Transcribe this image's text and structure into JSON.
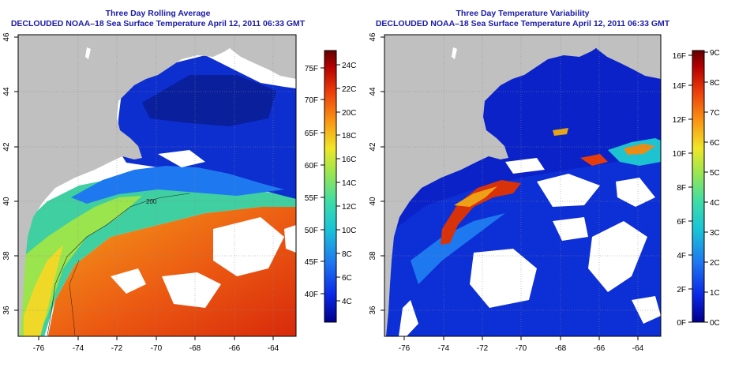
{
  "left_panel": {
    "title": "Three Day Rolling Average",
    "subtitle": "DECLOUDED NOAA–18 Sea Surface Temperature April 12, 2011 06:33 GMT",
    "x_ticks": [
      "-76",
      "-74",
      "-72",
      "-70",
      "-68",
      "-66",
      "-64"
    ],
    "y_ticks": [
      "36",
      "38",
      "40",
      "42",
      "44",
      "46"
    ],
    "colorbar_f_labels": [
      "40F",
      "45F",
      "50F",
      "55F",
      "60F",
      "65F",
      "70F",
      "75F"
    ],
    "colorbar_c_labels": [
      "4C",
      "6C",
      "8C",
      "10C",
      "12C",
      "14C",
      "16C",
      "18C",
      "20C",
      "22C",
      "24C"
    ],
    "contour_label": "200"
  },
  "right_panel": {
    "title": "Three Day Temperature Variability",
    "subtitle": "DECLOUDED NOAA–18 Sea Surface Temperature April 12, 2011 06:33 GMT",
    "x_ticks": [
      "-76",
      "-74",
      "-72",
      "-70",
      "-68",
      "-66",
      "-64"
    ],
    "y_ticks": [
      "36",
      "38",
      "40",
      "42",
      "44",
      "46"
    ],
    "colorbar_f_labels": [
      "0F",
      "2F",
      "4F",
      "6F",
      "8F",
      "10F",
      "12F",
      "14F",
      "16F"
    ],
    "colorbar_c_labels": [
      "0C",
      "1C",
      "2C",
      "3C",
      "4C",
      "5C",
      "6C",
      "7C",
      "8C",
      "9C"
    ]
  },
  "colors": {
    "land": "#c0c0c0",
    "title": "#1a1aa8",
    "sst_scale": [
      "#00008b",
      "#0a28e6",
      "#1e78f0",
      "#19c3d7",
      "#3cdcaa",
      "#9be650",
      "#f0e628",
      "#fa9614",
      "#eb3c0a",
      "#b40000",
      "#640000"
    ]
  }
}
